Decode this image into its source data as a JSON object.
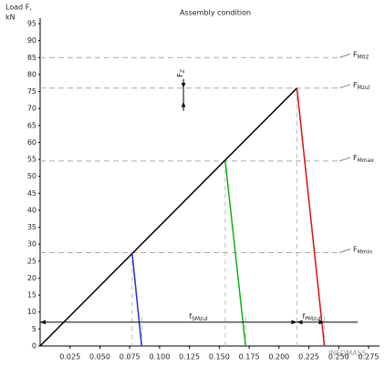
{
  "chart_data": {
    "type": "line",
    "title": "Assembly condition",
    "ylabel": "Load F,",
    "yunit": "kN",
    "xlim": [
      0,
      0.275
    ],
    "ylim": [
      0,
      95
    ],
    "xticks": [
      0.025,
      {
        "value": 0.05,
        "label": "0.050"
      },
      0.075,
      {
        "value": 0.1,
        "label": "0.100"
      },
      0.125,
      {
        "value": 0.15,
        "label": "0.150"
      },
      0.175,
      {
        "value": 0.2,
        "label": "0.200"
      },
      0.225,
      {
        "value": 0.25,
        "label": "0.250"
      },
      0.275
    ],
    "yticks": [
      0,
      5,
      10,
      15,
      20,
      25,
      30,
      35,
      40,
      45,
      50,
      55,
      60,
      65,
      70,
      75,
      80,
      85,
      90,
      95
    ],
    "series": [
      {
        "color": "#000000",
        "x": [
          0,
          0.215
        ],
        "values": [
          0,
          76
        ]
      },
      {
        "color": "#1f2fd0",
        "x": [
          0.077,
          0.085
        ],
        "values": [
          27.5,
          0
        ]
      },
      {
        "color": "#10b010",
        "x": [
          0.155,
          0.172
        ],
        "values": [
          54.5,
          0
        ]
      },
      {
        "color": "#e01010",
        "x": [
          0.215,
          0.238
        ],
        "values": [
          76,
          0
        ]
      }
    ],
    "hlines": [
      {
        "label": "F",
        "sub": "M02",
        "value": 85
      },
      {
        "label": "F",
        "sub": "Mzul",
        "value": 76
      },
      {
        "label": "F",
        "sub": "Mmax",
        "value": 54.5
      },
      {
        "label": "F",
        "sub": "Mmin",
        "value": 27.5
      }
    ],
    "dimensions": [
      {
        "label": "f",
        "sub": "SMzul",
        "x": [
          0,
          0.215
        ],
        "y": 7
      },
      {
        "label": "f",
        "sub": "PMzul",
        "x": [
          0.215,
          0.238
        ],
        "y": 7
      }
    ],
    "force": {
      "label": "F",
      "sub": "Z",
      "x": 0.12,
      "y": [
        76,
        72
      ]
    },
    "watermark": "INFOMASS"
  }
}
